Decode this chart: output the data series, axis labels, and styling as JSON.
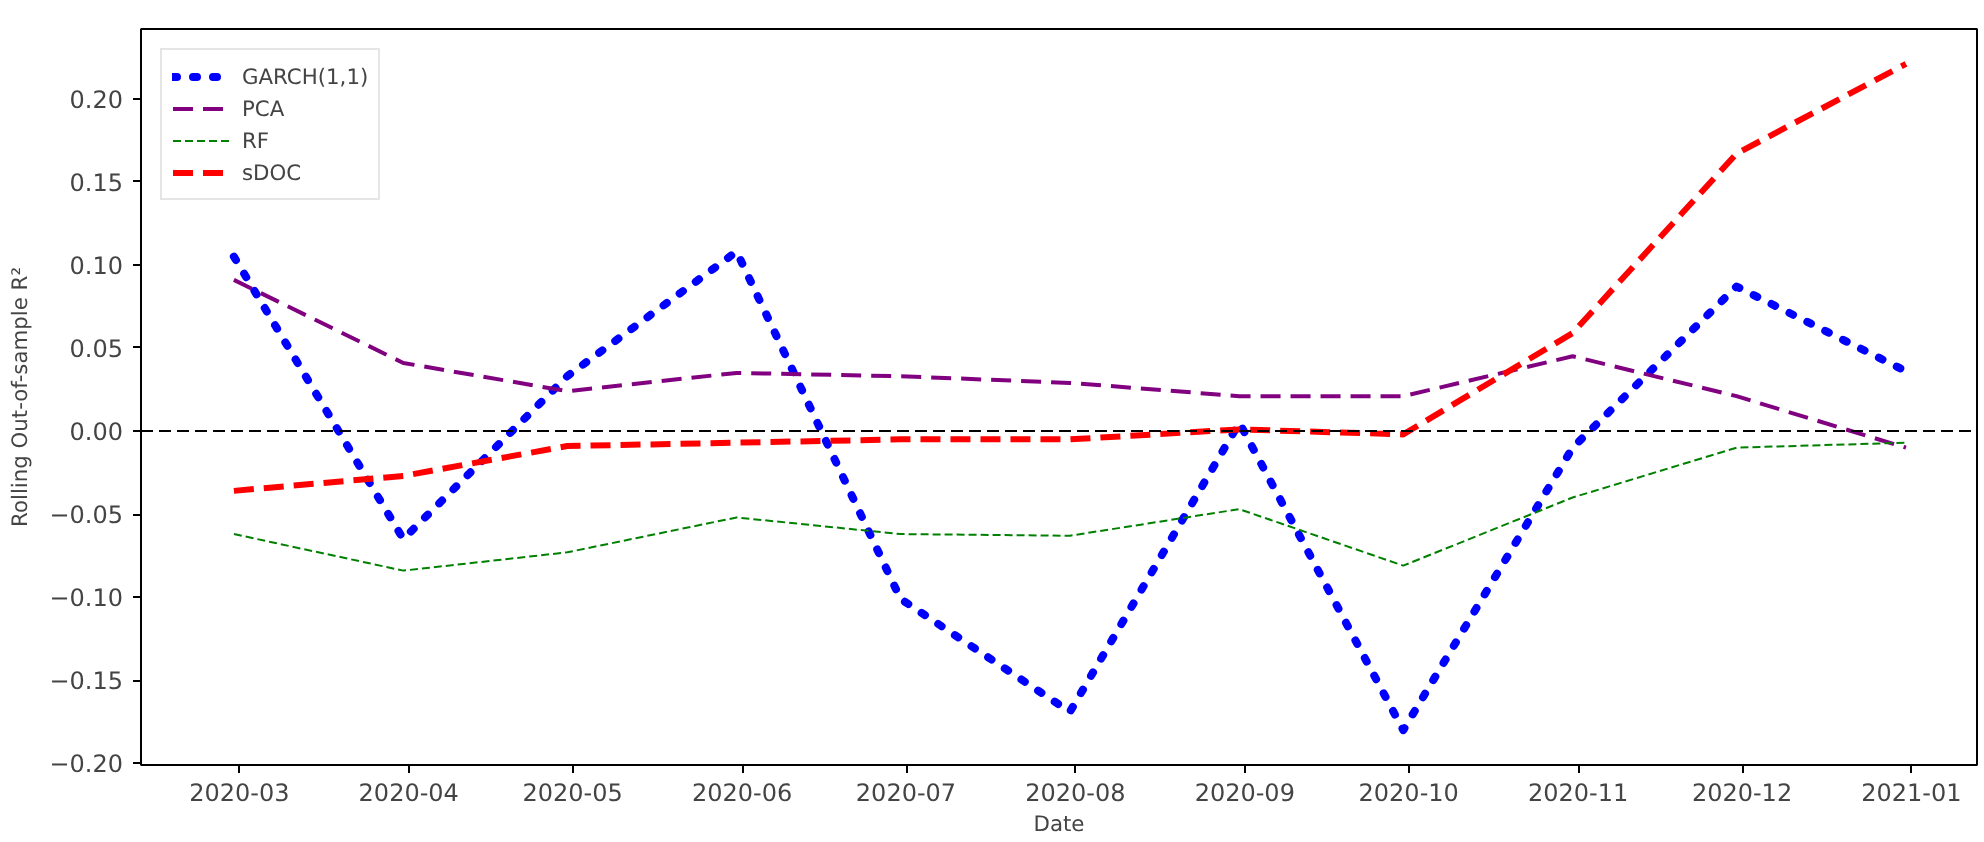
{
  "chart_data": {
    "type": "line",
    "xlabel": "Date",
    "ylabel": "Rolling Out-of-sample R²",
    "x": [
      "2020-02-29",
      "2020-03-31",
      "2020-04-30",
      "2020-05-31",
      "2020-06-30",
      "2020-07-31",
      "2020-08-31",
      "2020-09-30",
      "2020-10-31",
      "2020-11-30",
      "2020-12-31"
    ],
    "series": [
      {
        "name": "GARCH(1,1)",
        "color": "#0000ff",
        "line_style": "dotted",
        "values": [
          0.105,
          -0.065,
          0.033,
          0.108,
          -0.101,
          -0.169,
          0.005,
          -0.18,
          -0.01,
          0.087,
          0.036
        ]
      },
      {
        "name": "PCA",
        "color": "#800080",
        "line_style": "dashed",
        "values": [
          0.091,
          0.041,
          0.024,
          0.035,
          0.033,
          0.029,
          0.021,
          0.021,
          0.045,
          0.021,
          -0.01
        ]
      },
      {
        "name": "RF",
        "color": "#008000",
        "line_style": "dashed",
        "values": [
          -0.062,
          -0.084,
          -0.073,
          -0.052,
          -0.062,
          -0.063,
          -0.047,
          -0.081,
          -0.04,
          -0.01,
          -0.007
        ]
      },
      {
        "name": "sDOC",
        "color": "#ff0000",
        "line_style": "dashed",
        "values": [
          -0.036,
          -0.027,
          -0.009,
          -0.007,
          -0.005,
          -0.005,
          0.001,
          -0.002,
          0.059,
          0.167,
          0.221
        ]
      }
    ],
    "xlim": [
      "2020-02-12",
      "2021-01-13"
    ],
    "xticks": [
      {
        "value": "2020-03-01",
        "label": "2020-03"
      },
      {
        "value": "2020-04-01",
        "label": "2020-04"
      },
      {
        "value": "2020-05-01",
        "label": "2020-05"
      },
      {
        "value": "2020-06-01",
        "label": "2020-06"
      },
      {
        "value": "2020-07-01",
        "label": "2020-07"
      },
      {
        "value": "2020-08-01",
        "label": "2020-08"
      },
      {
        "value": "2020-09-01",
        "label": "2020-09"
      },
      {
        "value": "2020-10-01",
        "label": "2020-10"
      },
      {
        "value": "2020-11-01",
        "label": "2020-11"
      },
      {
        "value": "2020-12-01",
        "label": "2020-12"
      },
      {
        "value": "2021-01-01",
        "label": "2021-01"
      }
    ],
    "ylim": [
      -0.201,
      0.242
    ],
    "yticks": [
      {
        "value": -0.2,
        "label": "−0.20"
      },
      {
        "value": -0.15,
        "label": "−0.15"
      },
      {
        "value": -0.1,
        "label": "−0.10"
      },
      {
        "value": -0.05,
        "label": "−0.05"
      },
      {
        "value": 0,
        "label": "0.00"
      },
      {
        "value": 0.05,
        "label": "0.05"
      },
      {
        "value": 0.1,
        "label": "0.10"
      },
      {
        "value": 0.15,
        "label": "0.15"
      },
      {
        "value": 0.2,
        "label": "0.20"
      }
    ],
    "ref_lines": [
      {
        "axis": "y",
        "value": 0,
        "color": "#000000",
        "line_style": "dashed"
      }
    ],
    "grid": false,
    "legend": "top left"
  }
}
